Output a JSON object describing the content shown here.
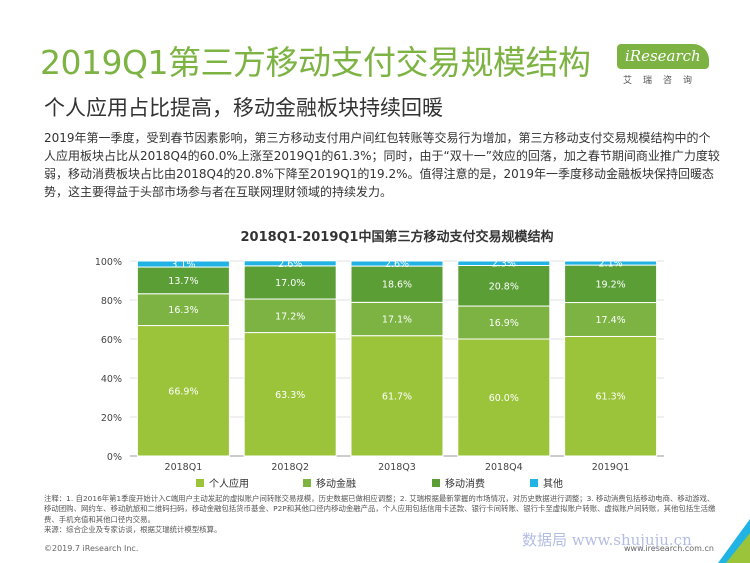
{
  "page": {
    "title": "2019Q1第三方移动支付交易规模结构",
    "subtitle": "个人应用占比提高，移动金融板块持续回暖",
    "paragraph": "2019年第一季度，受到春节因素影响，第三方移动支付用户间红包转账等交易行为增加，第三方移动支付交易规模结构中的个人应用板块占比从2018Q4的60.0%上涨至2019Q1的61.3%；同时，由于“双十一”效应的回落，加之春节期间商业推广力度较弱，移动消费板块占比由2018Q4的20.8%下降至2019Q1的19.2%。值得注意的是，2019年一季度移动金融板块保持回暖态势，这主要得益于头部市场参与者在互联网理财领域的持续发力。",
    "notes": [
      "注释：1. 自2016年第1季度开始计入C端用户主动发起的虚拟账户间转账交易规模，历史数据已做相应调整；2. 艾瑞根据最新掌握的市场情况，对历史数据进行调整；3. 移动消费包括移动电商、移动游戏、移动团购、网约车、移动航旅和二维码扫码，移动金融包括货币基金、P2P和其他口径内移动金融产品，个人应用包括信用卡还款、银行卡间转账、银行卡至虚拟账户转账、虚拟账户间转账，其他包括生活缴费、手机充值和其他口径内交易。",
      "来源：综合企业及专家访谈，根据艾瑞统计模型核算。"
    ],
    "footer_left": "©2019.7 iResearch Inc.",
    "footer_right": "www.iresearch.com.cn",
    "page_number": "3",
    "watermark": "数据局 www.shujuju.cn"
  },
  "logo": {
    "brand": "iResearch",
    "chinese": "艾瑞咨询",
    "color": "#7cb342"
  },
  "chart_data": {
    "type": "bar",
    "stacked": true,
    "title": "2018Q1-2019Q1中国第三方移动支付交易规模结构",
    "categories": [
      "2018Q1",
      "2018Q2",
      "2018Q3",
      "2018Q4",
      "2019Q1"
    ],
    "yticks": [
      "0%",
      "20%",
      "40%",
      "60%",
      "80%",
      "100%"
    ],
    "ylim": [
      0,
      100
    ],
    "grid": true,
    "legend_position": "bottom",
    "series": [
      {
        "name": "个人应用",
        "values": [
          66.9,
          63.3,
          61.7,
          60.0,
          61.3
        ],
        "labels": [
          "66.9%",
          "63.3%",
          "61.7%",
          "60.0%",
          "61.3%"
        ],
        "color": "#9bc43a"
      },
      {
        "name": "移动金融",
        "values": [
          16.3,
          17.2,
          17.1,
          16.9,
          17.4
        ],
        "labels": [
          "16.3%",
          "17.2%",
          "17.1%",
          "16.9%",
          "17.4%"
        ],
        "color": "#7cb342"
      },
      {
        "name": "移动消费",
        "values": [
          13.7,
          17.0,
          18.6,
          20.8,
          19.2
        ],
        "labels": [
          "13.7%",
          "17.0%",
          "18.6%",
          "20.8%",
          "19.2%"
        ],
        "color": "#5a9e35"
      },
      {
        "name": "其他",
        "values": [
          3.1,
          2.6,
          2.6,
          2.3,
          2.1
        ],
        "labels": [
          "3.1%",
          "2.6%",
          "2.6%",
          "2.3%",
          "2.1%"
        ],
        "color": "#21b3e3"
      }
    ]
  }
}
